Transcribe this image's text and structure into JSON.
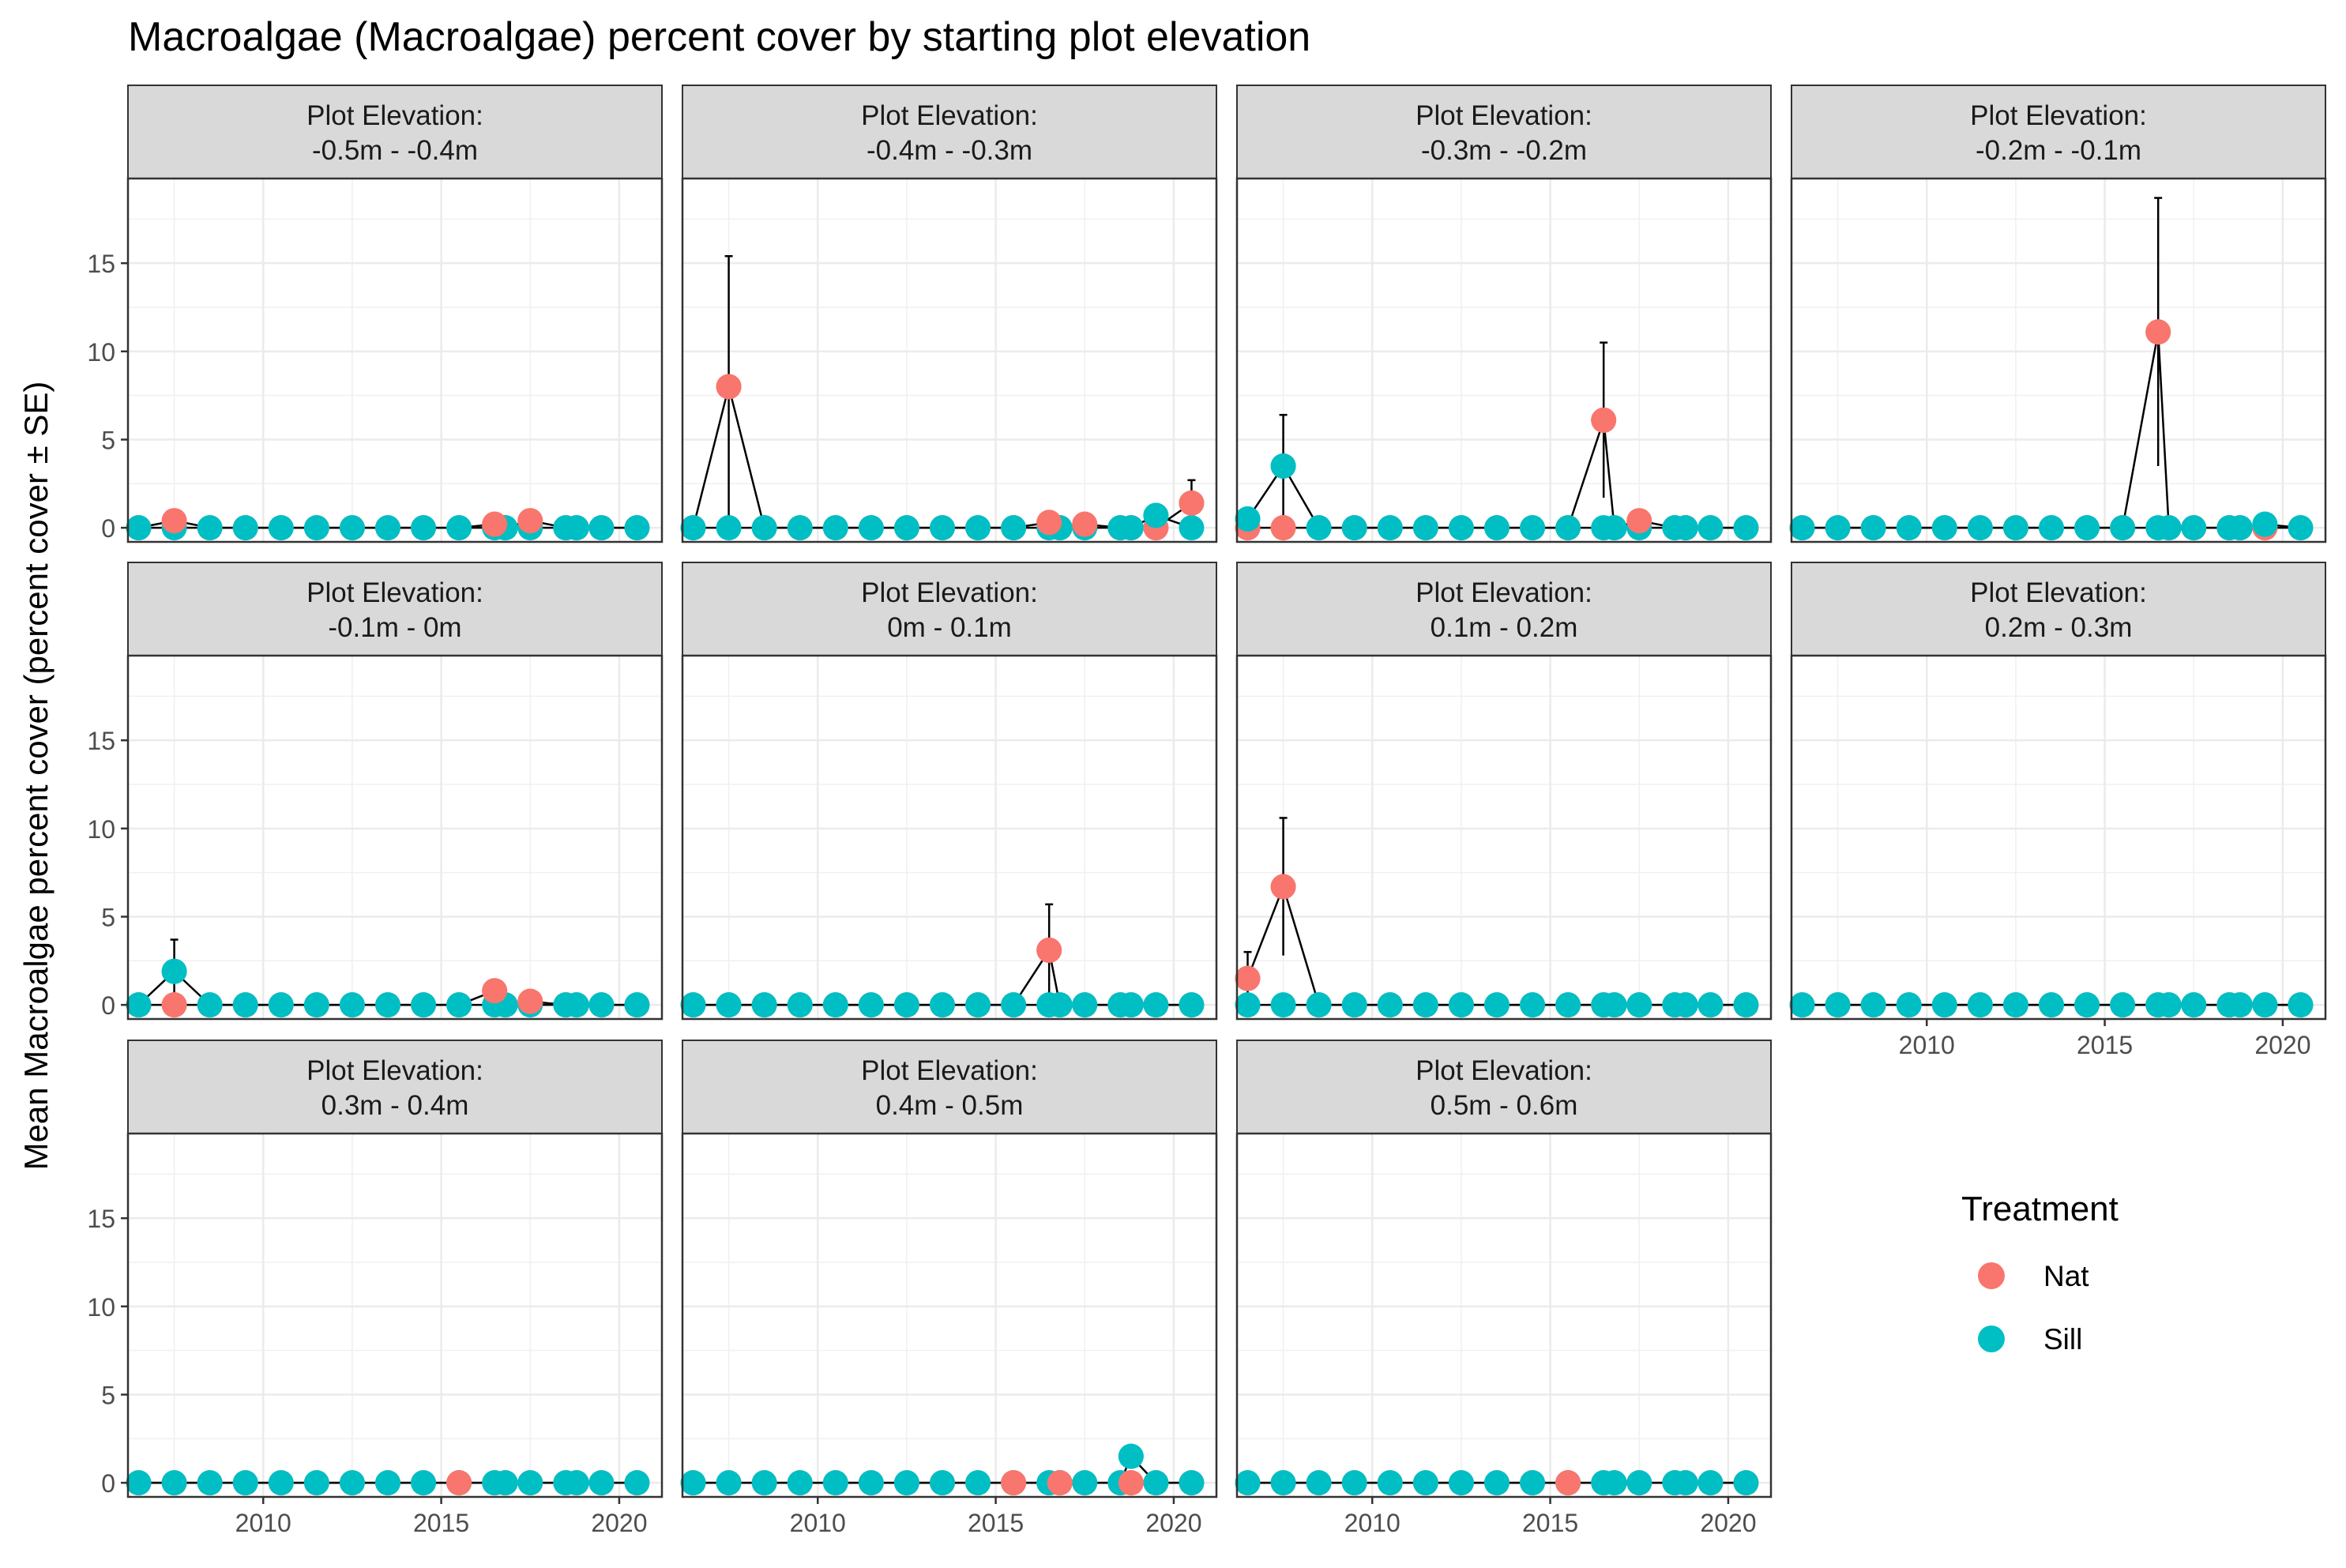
{
  "chart_data": {
    "type": "scatter",
    "title": "Macroalgae (Macroalgae) percent cover by starting plot elevation",
    "ylabel": "Mean Macroalgae percent cover (percent cover ± SE)",
    "xlabel": "",
    "xlim": [
      2006.2,
      2021.2
    ],
    "ylim": [
      -0.8,
      19.8
    ],
    "x_ticks": [
      2010,
      2015,
      2020
    ],
    "y_ticks": [
      0,
      5,
      10,
      15
    ],
    "grid": true,
    "facet_label_prefix": "Plot Elevation:",
    "legend": {
      "title": "Treatment",
      "position": "right",
      "entries": [
        {
          "name": "Nat",
          "color": "#F8766D"
        },
        {
          "name": "Sill",
          "color": "#00BFC4"
        }
      ]
    },
    "sample_years": [
      2006.5,
      2007.5,
      2008.5,
      2009.5,
      2010.5,
      2011.5,
      2012.5,
      2013.5,
      2014.5,
      2015.5,
      2016.5,
      2016.8,
      2017.5,
      2018.5,
      2018.8,
      2019.5,
      2020.5
    ],
    "panels": [
      {
        "label": "-0.5m - -0.4m",
        "series": [
          {
            "name": "Nat",
            "points": [
              {
                "x": 2007.5,
                "y": 0.4
              },
              {
                "x": 2016.5,
                "y": 0.2
              },
              {
                "x": 2017.5,
                "y": 0.4
              }
            ]
          },
          {
            "name": "Sill",
            "points": []
          }
        ]
      },
      {
        "label": "-0.4m - -0.3m",
        "series": [
          {
            "name": "Nat",
            "points": [
              {
                "x": 2007.5,
                "y": 8.0,
                "se": 7.4
              },
              {
                "x": 2016.5,
                "y": 0.3
              },
              {
                "x": 2017.5,
                "y": 0.2
              },
              {
                "x": 2019.5,
                "y": 0.0
              },
              {
                "x": 2020.5,
                "y": 1.4,
                "se": 1.3
              }
            ]
          },
          {
            "name": "Sill",
            "points": [
              {
                "x": 2019.5,
                "y": 0.7,
                "se": 0.5
              }
            ]
          }
        ]
      },
      {
        "label": "-0.3m - -0.2m",
        "series": [
          {
            "name": "Nat",
            "points": [
              {
                "x": 2006.5,
                "y": 0.0
              },
              {
                "x": 2007.5,
                "y": 0.0
              },
              {
                "x": 2016.5,
                "y": 6.1,
                "se": 4.4
              },
              {
                "x": 2017.5,
                "y": 0.4
              }
            ]
          },
          {
            "name": "Sill",
            "points": [
              {
                "x": 2006.5,
                "y": 0.5
              },
              {
                "x": 2007.5,
                "y": 3.5,
                "se": 2.9
              }
            ]
          }
        ]
      },
      {
        "label": "-0.2m - -0.1m",
        "series": [
          {
            "name": "Nat",
            "points": [
              {
                "x": 2016.5,
                "y": 11.1,
                "se": 7.6
              },
              {
                "x": 2019.5,
                "y": 0.0
              }
            ]
          },
          {
            "name": "Sill",
            "points": [
              {
                "x": 2019.5,
                "y": 0.2
              }
            ]
          }
        ]
      },
      {
        "label": "-0.1m - 0m",
        "series": [
          {
            "name": "Nat",
            "points": [
              {
                "x": 2007.5,
                "y": 0.0
              },
              {
                "x": 2016.5,
                "y": 0.8
              },
              {
                "x": 2017.5,
                "y": 0.2
              }
            ]
          },
          {
            "name": "Sill",
            "points": [
              {
                "x": 2007.5,
                "y": 1.9,
                "se": 1.8
              }
            ]
          }
        ]
      },
      {
        "label": "0m - 0.1m",
        "series": [
          {
            "name": "Nat",
            "points": [
              {
                "x": 2016.5,
                "y": 3.1,
                "se": 2.6
              }
            ]
          },
          {
            "name": "Sill",
            "points": []
          }
        ]
      },
      {
        "label": "0.1m - 0.2m",
        "series": [
          {
            "name": "Nat",
            "points": [
              {
                "x": 2006.5,
                "y": 1.5,
                "se": 1.5
              },
              {
                "x": 2007.5,
                "y": 6.7,
                "se": 3.9
              }
            ]
          },
          {
            "name": "Sill",
            "points": []
          }
        ]
      },
      {
        "label": "0.2m - 0.3m",
        "series": [
          {
            "name": "Nat",
            "points": []
          },
          {
            "name": "Sill",
            "points": []
          }
        ]
      },
      {
        "label": "0.3m - 0.4m",
        "series": [
          {
            "name": "Nat",
            "points": [
              {
                "x": 2015.5,
                "y": 0.0
              }
            ]
          },
          {
            "name": "Sill",
            "points": []
          }
        ]
      },
      {
        "label": "0.4m - 0.5m",
        "series": [
          {
            "name": "Nat",
            "points": [
              {
                "x": 2015.5,
                "y": 0.0
              },
              {
                "x": 2016.8,
                "y": 0.0
              },
              {
                "x": 2018.8,
                "y": 0.0
              }
            ]
          },
          {
            "name": "Sill",
            "points": [
              {
                "x": 2018.8,
                "y": 1.5
              }
            ]
          }
        ]
      },
      {
        "label": "0.5m - 0.6m",
        "series": [
          {
            "name": "Nat",
            "points": [
              {
                "x": 2015.5,
                "y": 0.0
              }
            ]
          },
          {
            "name": "Sill",
            "points": []
          }
        ]
      }
    ]
  }
}
